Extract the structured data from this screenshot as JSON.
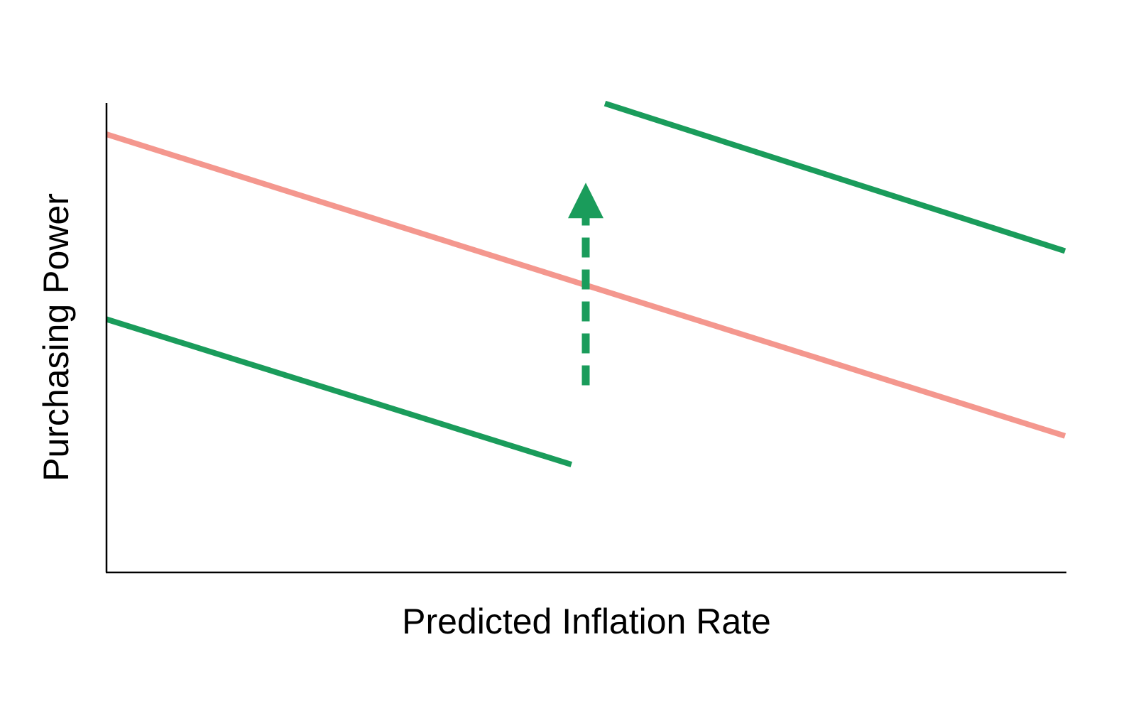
{
  "chart_data": {
    "type": "line",
    "title": "",
    "xlabel": "Predicted Inflation Rate",
    "ylabel": "Purchasing Power",
    "xlim": [
      0,
      100
    ],
    "ylim": [
      0,
      100
    ],
    "grid": false,
    "ticks": false,
    "series": [
      {
        "color": "#f4978e",
        "style": "solid",
        "x": [
          0,
          100
        ],
        "y": [
          99.5,
          31
        ]
      },
      {
        "color": "#1a9c5b",
        "style": "solid",
        "x": [
          0,
          48.5
        ],
        "y": [
          57.5,
          24.5
        ]
      },
      {
        "color": "#1a9c5b",
        "style": "solid",
        "x": [
          52,
          100
        ],
        "y": [
          106.5,
          73
        ]
      }
    ],
    "arrows": [
      {
        "color": "#1a9c5b",
        "style": "dashed",
        "x": 50,
        "y_from": 42.5,
        "y_to": 88.5
      }
    ]
  }
}
